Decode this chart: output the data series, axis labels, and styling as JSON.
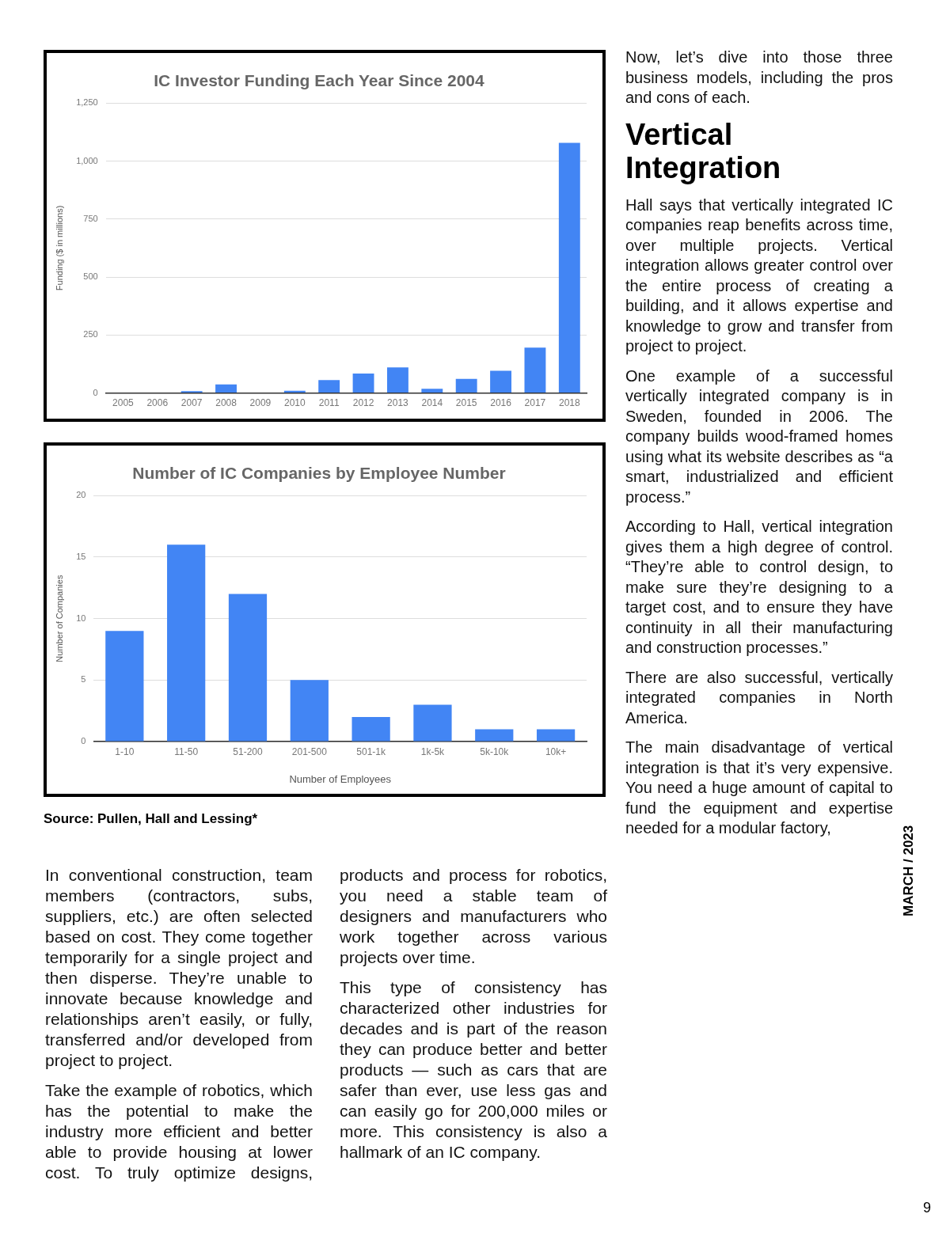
{
  "chart_data": [
    {
      "type": "bar",
      "title": "IC Investor Funding Each Year Since 2004",
      "ylabel": "Funding ($ in millions)",
      "categories": [
        "2005",
        "2006",
        "2007",
        "2008",
        "2009",
        "2010",
        "2011",
        "2012",
        "2013",
        "2014",
        "2015",
        "2016",
        "2017",
        "2018"
      ],
      "values": [
        0,
        0,
        8,
        37,
        0,
        10,
        56,
        84,
        110,
        18,
        61,
        96,
        196,
        1078
      ],
      "color": "#4285f4",
      "ylim": [
        0,
        1250
      ],
      "yticks": [
        0,
        {
          "value": 250,
          "label": "250"
        },
        {
          "value": 500,
          "label": "500"
        },
        {
          "value": 750,
          "label": "750"
        },
        {
          "value": 1000,
          "label": "1,000"
        },
        {
          "value": 1250,
          "label": "1,250"
        }
      ],
      "grid": "y",
      "legend": false
    },
    {
      "type": "bar",
      "title": "Number of IC Companies by Employee Number",
      "xlabel": "Number of Employees",
      "ylabel": "Number of Companies",
      "categories": [
        "1-10",
        "11-50",
        "51-200",
        "201-500",
        "501-1k",
        "1k-5k",
        "5k-10k",
        "10k+"
      ],
      "values": [
        9,
        16,
        12,
        5,
        2,
        3,
        1,
        1
      ],
      "color": "#4285f4",
      "ylim": [
        0,
        20
      ],
      "yticks": [
        0,
        5,
        10,
        15,
        20
      ],
      "grid": "y",
      "legend": false,
      "annotations": [
        "Source: Pullen, Hall and Lessing*",
        "In conventional construction, team members (contractors, subs, suppliers, etc.) are often selected based on cost. They come together temporarily for a single project and then disperse. They’re unable to innovate because knowledge and relationships aren’t easily, or fully, transferred and/or developed from project to project.",
        "Take the example of robotics, which has the potential to make the industry more efficient and better able to provide housing at lower cost. To truly optimize designs, products and process for robotics, you need a stable team of designers and manufacturers who work together across various projects over time.",
        "This type of consistency has characterized other industries for decades and is part of the reason they can produce better and better products — such as cars that are safer than ever, use less gas and can easily go for 200,000 miles or more. This consistency is also a hallmark of an IC company.",
        "Now, let’s dive into those three business models, including the pros and cons of each.",
        "Vertical Integration",
        "Hall says that vertically integrated IC companies reap benefits across time, over multiple projects. Vertical integration allows greater control over the entire process of creating a building, and it allows expertise and knowledge to grow and transfer from project to project.",
        "One example of a successful vertically integrated company is in Sweden, founded in 2006. The company builds wood-framed homes using what its website describes as “a smart, industrialized and efficient process.”",
        "According to Hall, vertical integration gives them a high degree of control. “They’re able to control design, to make sure they’re designing to a target cost, and to ensure they have continuity in all their manufacturing and construction processes.”",
        "There are also successful, vertically integrated companies in North America.",
        "The main disadvantage of vertical integration is that it’s very expensive. You need a huge amount of capital to fund the equipment and expertise needed for a modular factory,",
        "MARCH / 2023",
        "9"
      ]
    }
  ]
}
